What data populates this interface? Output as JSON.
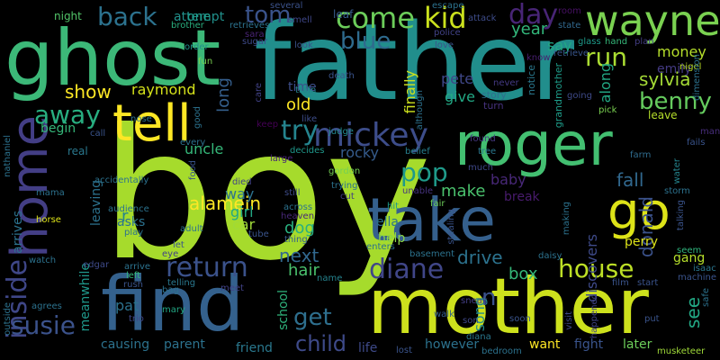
{
  "wordcloud": {
    "background": "#000000",
    "words": [
      {
        "text": "boy",
        "color": "#a6db2c",
        "vertical": false
      },
      {
        "text": "father",
        "color": "#218e8c",
        "vertical": false
      },
      {
        "text": "mother",
        "color": "#cde11d",
        "vertical": false
      },
      {
        "text": "ghost",
        "color": "#3cb878",
        "vertical": false
      },
      {
        "text": "find",
        "color": "#34618d",
        "vertical": false
      },
      {
        "text": "roger",
        "color": "#43bf71",
        "vertical": false
      },
      {
        "text": "take",
        "color": "#35608d",
        "vertical": false
      },
      {
        "text": "home",
        "color": "#433e85",
        "vertical": true
      },
      {
        "text": "go",
        "color": "#dde318",
        "vertical": false
      },
      {
        "text": "tell",
        "color": "#fde725",
        "vertical": false
      },
      {
        "text": "wayne",
        "color": "#7ad151",
        "vertical": false
      },
      {
        "text": "mickey",
        "color": "#3d4d8a",
        "vertical": false
      },
      {
        "text": "come",
        "color": "#6ccd5a",
        "vertical": false
      },
      {
        "text": "kid",
        "color": "#cbe11d",
        "vertical": false
      },
      {
        "text": "back",
        "color": "#2c728e",
        "vertical": false
      },
      {
        "text": "tom",
        "color": "#3a538b",
        "vertical": false
      },
      {
        "text": "day",
        "color": "#482576",
        "vertical": false
      },
      {
        "text": "run",
        "color": "#aadc32",
        "vertical": false
      },
      {
        "text": "blue",
        "color": "#2f6b8e",
        "vertical": false
      },
      {
        "text": "away",
        "color": "#28ae80",
        "vertical": false
      },
      {
        "text": "try",
        "color": "#25848e",
        "vertical": false
      },
      {
        "text": "return",
        "color": "#3b528b",
        "vertical": false
      },
      {
        "text": "house",
        "color": "#bddf26",
        "vertical": false
      },
      {
        "text": "diane",
        "color": "#404688",
        "vertical": false
      },
      {
        "text": "pop",
        "color": "#1f9a8a",
        "vertical": false
      },
      {
        "text": "benny",
        "color": "#65cb5e",
        "vertical": false
      },
      {
        "text": "sylvia",
        "color": "#a5db36",
        "vertical": false
      },
      {
        "text": "inside",
        "color": "#3f4788",
        "vertical": true
      },
      {
        "text": "susie",
        "color": "#3b528b",
        "vertical": false
      },
      {
        "text": "get",
        "color": "#2e6f8e",
        "vertical": false
      },
      {
        "text": "child",
        "color": "#3e4a89",
        "vertical": false
      },
      {
        "text": "show",
        "color": "#fde725",
        "vertical": false
      },
      {
        "text": "raymond",
        "color": "#d5e21a",
        "vertical": false
      },
      {
        "text": "money",
        "color": "#b5de2b",
        "vertical": false
      },
      {
        "text": "emily",
        "color": "#443a83",
        "vertical": false
      },
      {
        "text": "year",
        "color": "#32b67a",
        "vertical": false
      },
      {
        "text": "say",
        "color": "#22a785",
        "vertical": false
      },
      {
        "text": "attempt",
        "color": "#21918c",
        "vertical": false
      },
      {
        "text": "one",
        "color": "#1e9b8a",
        "vertical": false
      },
      {
        "text": "night",
        "color": "#52c569",
        "vertical": false
      },
      {
        "text": "leaf",
        "color": "#365c8d",
        "vertical": false
      },
      {
        "text": "several",
        "color": "#3b528b",
        "vertical": false
      },
      {
        "text": "smell",
        "color": "#3f4788",
        "vertical": false
      },
      {
        "text": "brother",
        "color": "#29af7f",
        "vertical": false
      },
      {
        "text": "retrieves",
        "color": "#2c728e",
        "vertical": false
      },
      {
        "text": "escape",
        "color": "#2c728e",
        "vertical": false
      },
      {
        "text": "attack",
        "color": "#3e4c8a",
        "vertical": false
      },
      {
        "text": "room",
        "color": "#471164",
        "vertical": false
      },
      {
        "text": "state",
        "color": "#31688e",
        "vertical": false
      },
      {
        "text": "glass",
        "color": "#1e9b8a",
        "vertical": false
      },
      {
        "text": "hand",
        "color": "#35b779",
        "vertical": false
      },
      {
        "text": "retrieve",
        "color": "#39568c",
        "vertical": false
      },
      {
        "text": "plan",
        "color": "#433d84",
        "vertical": false
      },
      {
        "text": "police",
        "color": "#414287",
        "vertical": false
      },
      {
        "text": "love",
        "color": "#3a538b",
        "vertical": false
      },
      {
        "text": "know",
        "color": "#481f70",
        "vertical": false
      },
      {
        "text": "nigel",
        "color": "#bade28",
        "vertical": false
      },
      {
        "text": "order",
        "color": "#21918c",
        "vertical": false
      },
      {
        "text": "fun",
        "color": "#7ad151",
        "vertical": false
      },
      {
        "text": "sugar",
        "color": "#3e4a89",
        "vertical": false
      },
      {
        "text": "sara",
        "color": "#482475",
        "vertical": false
      },
      {
        "text": "look",
        "color": "#3b528b",
        "vertical": false
      },
      {
        "text": "long",
        "color": "#355f8d",
        "vertical": true
      },
      {
        "text": "old",
        "color": "#fde725",
        "vertical": false
      },
      {
        "text": "time",
        "color": "#3d4e8a",
        "vertical": false
      },
      {
        "text": "pete",
        "color": "#3f4788",
        "vertical": false
      },
      {
        "text": "give",
        "color": "#22a884",
        "vertical": false
      },
      {
        "text": "finally",
        "color": "#cde11d",
        "vertical": true
      },
      {
        "text": "story",
        "color": "#2e6e8e",
        "vertical": false
      },
      {
        "text": "turn",
        "color": "#46327e",
        "vertical": false
      },
      {
        "text": "never",
        "color": "#443983",
        "vertical": false
      },
      {
        "text": "along",
        "color": "#22a884",
        "vertical": true
      },
      {
        "text": "notice",
        "color": "#2a788e",
        "vertical": true
      },
      {
        "text": "grandmother",
        "color": "#1e9c89",
        "vertical": true
      },
      {
        "text": "dimension",
        "color": "#2c728e",
        "vertical": true
      },
      {
        "text": "leave",
        "color": "#b5de2b",
        "vertical": false
      },
      {
        "text": "man",
        "color": "#472d7b",
        "vertical": false
      },
      {
        "text": "fails",
        "color": "#3a548c",
        "vertical": false
      },
      {
        "text": "farm",
        "color": "#2f6c8e",
        "vertical": false
      },
      {
        "text": "pick",
        "color": "#7ad151",
        "vertical": false
      },
      {
        "text": "going",
        "color": "#3e4a89",
        "vertical": false
      },
      {
        "text": "train",
        "color": "#26828e",
        "vertical": false
      },
      {
        "text": "death",
        "color": "#3a548c",
        "vertical": false
      },
      {
        "text": "although",
        "color": "#2d718e",
        "vertical": true
      },
      {
        "text": "like",
        "color": "#3d4d8a",
        "vertical": false
      },
      {
        "text": "keep",
        "color": "#440154",
        "vertical": false
      },
      {
        "text": "judge",
        "color": "#23898e",
        "vertical": false
      },
      {
        "text": "alamein",
        "color": "#fde725",
        "vertical": false
      },
      {
        "text": "donald",
        "color": "#3b528b",
        "vertical": true
      },
      {
        "text": "fall",
        "color": "#31688e",
        "vertical": false
      },
      {
        "text": "see",
        "color": "#22a884",
        "vertical": true
      },
      {
        "text": "make",
        "color": "#4ac16d",
        "vertical": false
      },
      {
        "text": "baby",
        "color": "#482878",
        "vertical": false
      },
      {
        "text": "rocky",
        "color": "#365c8d",
        "vertical": false
      },
      {
        "text": "belief",
        "color": "#277f8e",
        "vertical": false
      },
      {
        "text": "tree",
        "color": "#2a788e",
        "vertical": false
      },
      {
        "text": "much",
        "color": "#3f4788",
        "vertical": false
      },
      {
        "text": "found",
        "color": "#453781",
        "vertical": false
      },
      {
        "text": "water",
        "color": "#25858e",
        "vertical": true
      },
      {
        "text": "storm",
        "color": "#2c728e",
        "vertical": false
      },
      {
        "text": "break",
        "color": "#481b6d",
        "vertical": false
      },
      {
        "text": "decides",
        "color": "#1f988b",
        "vertical": false
      },
      {
        "text": "gordon",
        "color": "#75d054",
        "vertical": false
      },
      {
        "text": "trying",
        "color": "#2c728e",
        "vertical": false
      },
      {
        "text": "cut",
        "color": "#433d84",
        "vertical": false
      },
      {
        "text": "unable",
        "color": "#46337f",
        "vertical": false
      },
      {
        "text": "hit",
        "color": "#1e9b8a",
        "vertical": false
      },
      {
        "text": "fair",
        "color": "#6ccd5a",
        "vertical": false
      },
      {
        "text": "across",
        "color": "#2c728e",
        "vertical": false
      },
      {
        "text": "heaven",
        "color": "#482878",
        "vertical": false
      },
      {
        "text": "large",
        "color": "#482475",
        "vertical": false
      },
      {
        "text": "still",
        "color": "#3e4c8a",
        "vertical": false
      },
      {
        "text": "thing",
        "color": "#355f8d",
        "vertical": false
      },
      {
        "text": "name",
        "color": "#25838e",
        "vertical": false
      },
      {
        "text": "hair",
        "color": "#4ac16d",
        "vertical": false
      },
      {
        "text": "next",
        "color": "#31688e",
        "vertical": false
      },
      {
        "text": "dog",
        "color": "#29af7f",
        "vertical": false
      },
      {
        "text": "girl",
        "color": "#22a884",
        "vertical": false
      },
      {
        "text": "way",
        "color": "#2c728e",
        "vertical": false
      },
      {
        "text": "car",
        "color": "#a0da39",
        "vertical": false
      },
      {
        "text": "uncle",
        "color": "#35b779",
        "vertical": false
      },
      {
        "text": "asks",
        "color": "#2c728e",
        "vertical": false
      },
      {
        "text": "r",
        "color": "#25848e",
        "vertical": false
      },
      {
        "text": "ella",
        "color": "#2c728e",
        "vertical": false
      },
      {
        "text": "help",
        "color": "#8bd646",
        "vertical": false
      },
      {
        "text": "perry",
        "color": "#dde318",
        "vertical": false
      },
      {
        "text": "gang",
        "color": "#b5de2b",
        "vertical": false
      },
      {
        "text": "seem",
        "color": "#2fb47c",
        "vertical": false
      },
      {
        "text": "isaac",
        "color": "#2a768e",
        "vertical": false
      },
      {
        "text": "machine",
        "color": "#3a548c",
        "vertical": false
      },
      {
        "text": "discovers",
        "color": "#3e4a89",
        "vertical": true
      },
      {
        "text": "drive",
        "color": "#2c728e",
        "vertical": false
      },
      {
        "text": "box",
        "color": "#35b779",
        "vertical": false
      },
      {
        "text": "daisy",
        "color": "#2c728e",
        "vertical": false
      },
      {
        "text": "film",
        "color": "#3a538b",
        "vertical": false
      },
      {
        "text": "start",
        "color": "#3a538b",
        "vertical": false
      },
      {
        "text": "safe",
        "color": "#2c728e",
        "vertical": true
      },
      {
        "text": "n",
        "color": "#3b528b",
        "vertical": false
      },
      {
        "text": "song",
        "color": "#238a8d",
        "vertical": true
      },
      {
        "text": "school",
        "color": "#2fb47c",
        "vertical": true
      },
      {
        "text": "pat",
        "color": "#2c728e",
        "vertical": false
      },
      {
        "text": "trio",
        "color": "#3f4788",
        "vertical": false
      },
      {
        "text": "mary",
        "color": "#22a884",
        "vertical": false
      },
      {
        "text": "parent",
        "color": "#2c728e",
        "vertical": false
      },
      {
        "text": "causing",
        "color": "#2c728e",
        "vertical": false
      },
      {
        "text": "friend",
        "color": "#2a788e",
        "vertical": false
      },
      {
        "text": "life",
        "color": "#3e4a89",
        "vertical": false
      },
      {
        "text": "lost",
        "color": "#3a548c",
        "vertical": false
      },
      {
        "text": "bedroom",
        "color": "#2c728e",
        "vertical": false
      },
      {
        "text": "diana",
        "color": "#2a788e",
        "vertical": false
      },
      {
        "text": "however",
        "color": "#2c728e",
        "vertical": false
      },
      {
        "text": "want",
        "color": "#fde725",
        "vertical": false
      },
      {
        "text": "fight",
        "color": "#3a548c",
        "vertical": false
      },
      {
        "text": "later",
        "color": "#6ccd5a",
        "vertical": false
      },
      {
        "text": "musketeer",
        "color": "#a0da39",
        "vertical": false
      },
      {
        "text": "son",
        "color": "#3f4788",
        "vertical": false
      },
      {
        "text": "walk",
        "color": "#355f8d",
        "vertical": false
      },
      {
        "text": "sneak",
        "color": "#433e85",
        "vertical": false
      },
      {
        "text": "soon",
        "color": "#3a548c",
        "vertical": false
      },
      {
        "text": "visit",
        "color": "#3e4a89",
        "vertical": true
      },
      {
        "text": "happened",
        "color": "#414287",
        "vertical": true
      },
      {
        "text": "put",
        "color": "#3a548c",
        "vertical": false
      },
      {
        "text": "meanwhile",
        "color": "#1f988b",
        "vertical": true
      },
      {
        "text": "leaving",
        "color": "#2c728e",
        "vertical": true
      },
      {
        "text": "arrives",
        "color": "#2c728e",
        "vertical": true
      },
      {
        "text": "nathaniel",
        "color": "#2c728e",
        "vertical": true
      },
      {
        "text": "outside",
        "color": "#2c728e",
        "vertical": true
      },
      {
        "text": "begin",
        "color": "#35b779",
        "vertical": false
      },
      {
        "text": "real",
        "color": "#2a788e",
        "vertical": false
      },
      {
        "text": "mama",
        "color": "#2c728e",
        "vertical": false
      },
      {
        "text": "horse",
        "color": "#dde318",
        "vertical": false
      },
      {
        "text": "watch",
        "color": "#2c728e",
        "vertical": false
      },
      {
        "text": "agrees",
        "color": "#2c728e",
        "vertical": false
      },
      {
        "text": "edgar",
        "color": "#3e4a89",
        "vertical": false
      },
      {
        "text": "arrive",
        "color": "#2c728e",
        "vertical": false
      },
      {
        "text": "left",
        "color": "#35b779",
        "vertical": false
      },
      {
        "text": "rush",
        "color": "#3a548c",
        "vertical": false
      },
      {
        "text": "bag",
        "color": "#2c728e",
        "vertical": false
      },
      {
        "text": "telling",
        "color": "#2a788e",
        "vertical": false
      },
      {
        "text": "meet",
        "color": "#414287",
        "vertical": false
      },
      {
        "text": "audience",
        "color": "#2c728e",
        "vertical": false
      },
      {
        "text": "play",
        "color": "#2c728e",
        "vertical": false
      },
      {
        "text": "accidentally",
        "color": "#2c728e",
        "vertical": false
      },
      {
        "text": "every",
        "color": "#2c728e",
        "vertical": false
      },
      {
        "text": "call",
        "color": "#3a548c",
        "vertical": false
      },
      {
        "text": "nose",
        "color": "#2c728e",
        "vertical": false
      },
      {
        "text": "adult",
        "color": "#2c728e",
        "vertical": false
      },
      {
        "text": "died",
        "color": "#414287",
        "vertical": false
      },
      {
        "text": "tube",
        "color": "#3a548c",
        "vertical": false
      },
      {
        "text": "food",
        "color": "#3a548c",
        "vertical": true
      },
      {
        "text": "good",
        "color": "#2c728e",
        "vertical": true
      },
      {
        "text": "care",
        "color": "#414287",
        "vertical": true
      },
      {
        "text": "let",
        "color": "#3a548c",
        "vertical": false
      },
      {
        "text": "eye",
        "color": "#414287",
        "vertical": false
      },
      {
        "text": "enters",
        "color": "#2c728e",
        "vertical": false
      },
      {
        "text": "stealing",
        "color": "#3a548c",
        "vertical": true
      },
      {
        "text": "basement",
        "color": "#2c728e",
        "vertical": false
      },
      {
        "text": "making",
        "color": "#2c728e",
        "vertical": true
      },
      {
        "text": "talking",
        "color": "#3a548c",
        "vertical": true
      }
    ]
  }
}
